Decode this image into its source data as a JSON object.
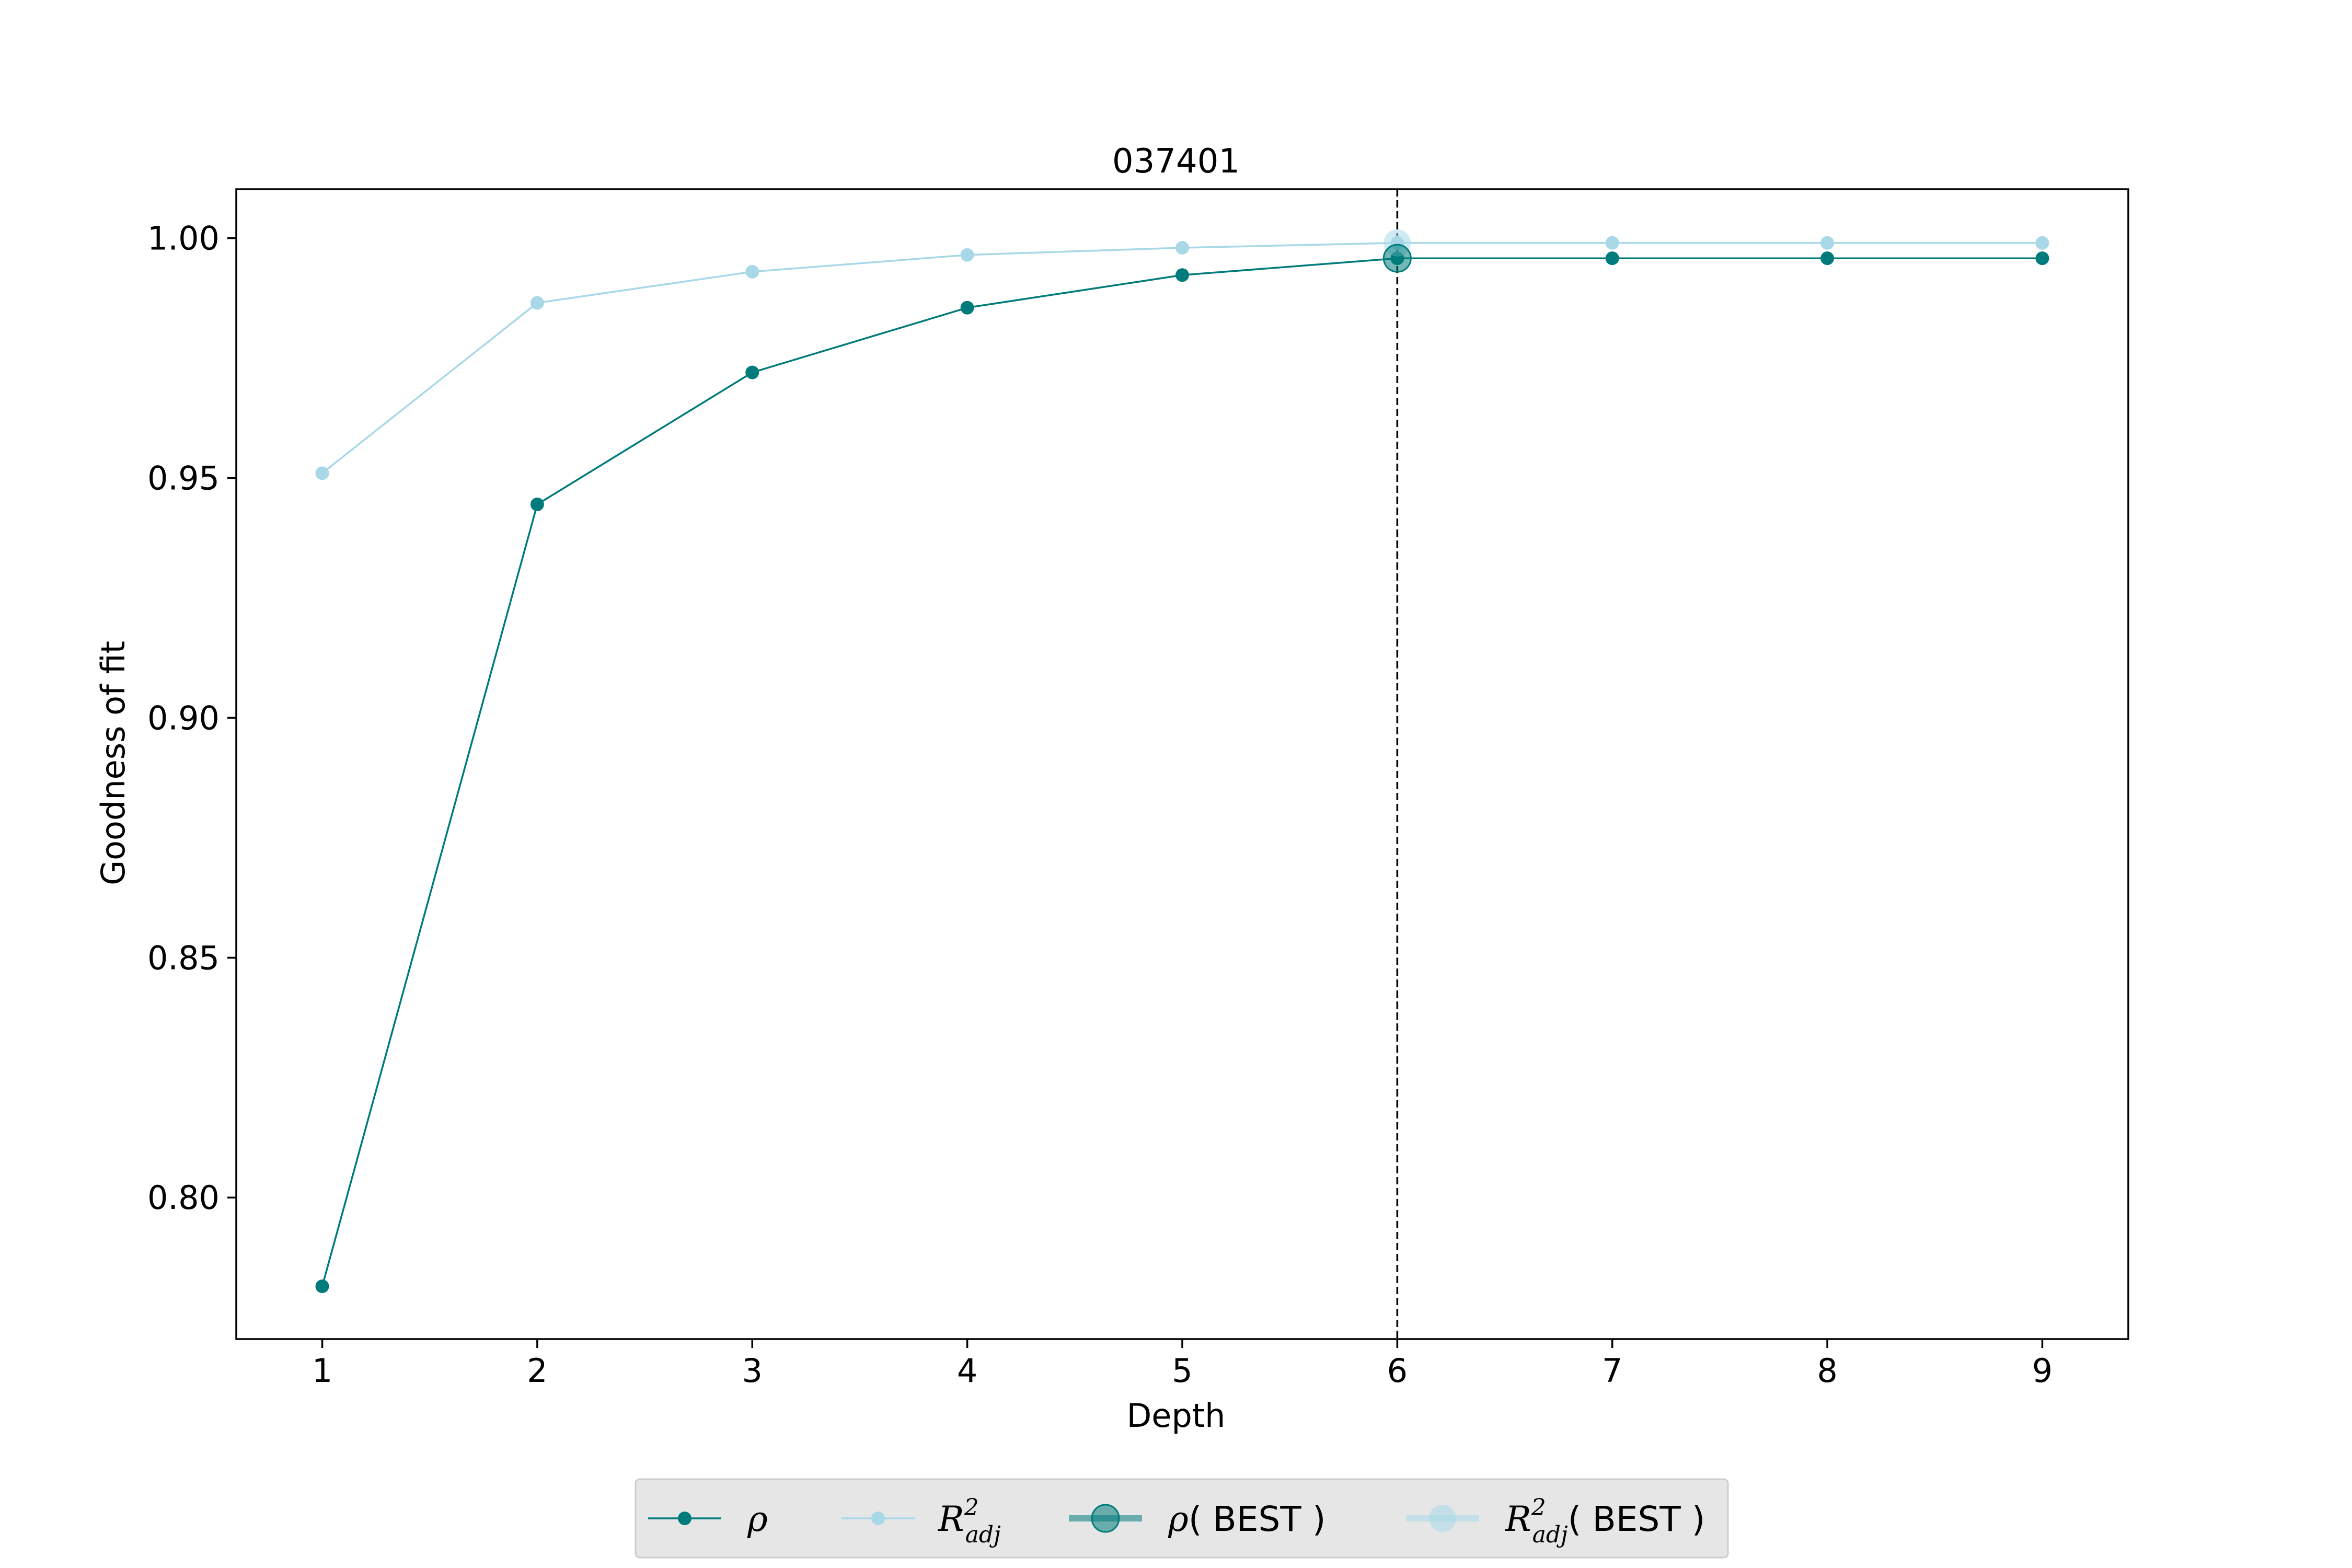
{
  "chart_data": {
    "type": "line",
    "title": "037401",
    "xlabel": "Depth",
    "ylabel": "Goodness of fit",
    "x": [
      1,
      2,
      3,
      4,
      5,
      6,
      7,
      8,
      9
    ],
    "xlim": [
      0.6,
      9.4
    ],
    "ylim": [
      0.7705,
      1.0102
    ],
    "x_ticks": [
      "1",
      "2",
      "3",
      "4",
      "5",
      "6",
      "7",
      "8",
      "9"
    ],
    "y_ticks": [
      "0.80",
      "0.85",
      "0.90",
      "0.95",
      "1.00"
    ],
    "y_tick_values": [
      0.8,
      0.85,
      0.9,
      0.95,
      1.0
    ],
    "grid": false,
    "legend_position": "below",
    "series": [
      {
        "name": "ρ",
        "color": "#007b7b",
        "values": [
          0.7815,
          0.9445,
          0.972,
          0.9855,
          0.9923,
          0.9958,
          0.9958,
          0.9958,
          0.9958
        ]
      },
      {
        "name": "R²adj",
        "color": "#a8d8e8",
        "values": [
          0.951,
          0.9865,
          0.993,
          0.9965,
          0.998,
          0.999,
          0.999,
          0.999,
          0.999
        ]
      }
    ],
    "best": {
      "x": 6,
      "rho": 0.9958,
      "r2adj": 0.999
    },
    "legend": [
      {
        "key": "rho",
        "symbol": "ρ",
        "sub": "",
        "sup": "",
        "suffix": ""
      },
      {
        "key": "r2adj",
        "symbol": "R",
        "sup": "2",
        "sub": "adj",
        "suffix": ""
      },
      {
        "key": "rho_best",
        "symbol": "ρ",
        "sub": "",
        "sup": "",
        "suffix": "( BEST )"
      },
      {
        "key": "r2adj_best",
        "symbol": "R",
        "sup": "2",
        "sub": "adj",
        "suffix": "( BEST )"
      }
    ],
    "colors": {
      "rho": "#007b7b",
      "r2adj": "#a8d8e8",
      "legend_bg": "#e6e6e6",
      "legend_border": "#cccccc",
      "vline": "#000000"
    }
  }
}
